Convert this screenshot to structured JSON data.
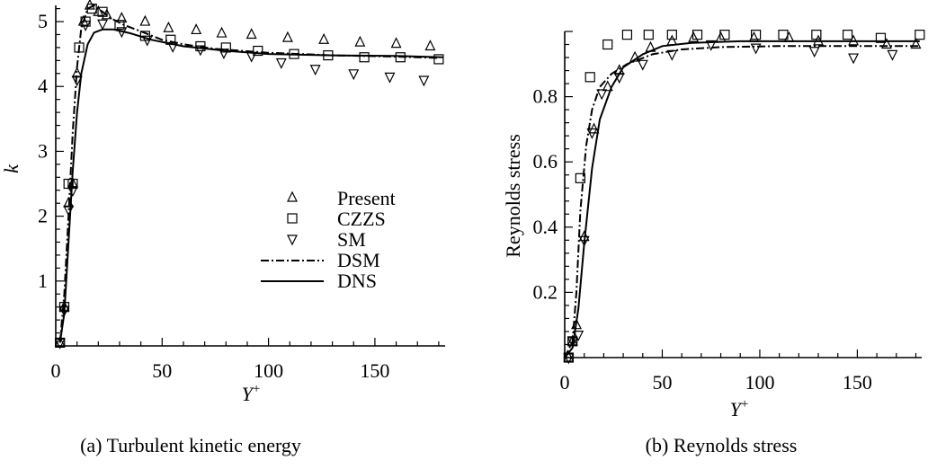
{
  "chart_data": [
    {
      "type": "line",
      "caption": "(a) Turbulent kinetic energy",
      "title": "",
      "xlabel": "Y",
      "xlabel_sup": "+",
      "ylabel": "k",
      "xlim": [
        0,
        183
      ],
      "ylim": [
        0,
        5.25
      ],
      "xticks": [
        0,
        50,
        100,
        150
      ],
      "yticks": [
        1,
        2,
        3,
        4,
        5
      ],
      "grid": false,
      "legend_position": "center-right",
      "series": [
        {
          "name": "Present",
          "marker": "triangle-up",
          "values": [
            [
              2,
              0.05
            ],
            [
              4,
              0.6
            ],
            [
              6,
              2.2
            ],
            [
              8,
              2.5
            ],
            [
              10,
              4.2
            ],
            [
              13,
              5.0
            ],
            [
              16,
              5.25
            ],
            [
              20,
              5.15
            ],
            [
              24,
              5.1
            ],
            [
              31,
              5.05
            ],
            [
              42,
              5.0
            ],
            [
              53,
              4.9
            ],
            [
              66,
              4.87
            ],
            [
              78,
              4.82
            ],
            [
              92,
              4.8
            ],
            [
              109,
              4.75
            ],
            [
              126,
              4.72
            ],
            [
              143,
              4.68
            ],
            [
              160,
              4.66
            ],
            [
              176,
              4.62
            ]
          ]
        },
        {
          "name": "CZZS",
          "marker": "square",
          "values": [
            [
              2,
              0.05
            ],
            [
              4,
              0.6
            ],
            [
              6,
              2.5
            ],
            [
              8,
              2.5
            ],
            [
              11,
              4.6
            ],
            [
              14,
              5.0
            ],
            [
              17,
              5.2
            ],
            [
              22,
              5.15
            ],
            [
              30,
              4.95
            ],
            [
              42,
              4.78
            ],
            [
              54,
              4.72
            ],
            [
              68,
              4.62
            ],
            [
              80,
              4.6
            ],
            [
              95,
              4.55
            ],
            [
              112,
              4.5
            ],
            [
              128,
              4.48
            ],
            [
              145,
              4.45
            ],
            [
              162,
              4.45
            ],
            [
              180,
              4.42
            ]
          ]
        },
        {
          "name": "SM",
          "marker": "triangle-down",
          "values": [
            [
              2,
              0.05
            ],
            [
              4,
              0.55
            ],
            [
              6,
              2.1
            ],
            [
              8,
              2.4
            ],
            [
              10,
              4.1
            ],
            [
              14,
              4.95
            ],
            [
              22,
              4.97
            ],
            [
              31,
              4.85
            ],
            [
              43,
              4.72
            ],
            [
              55,
              4.62
            ],
            [
              68,
              4.57
            ],
            [
              79,
              4.52
            ],
            [
              92,
              4.47
            ],
            [
              106,
              4.37
            ],
            [
              122,
              4.27
            ],
            [
              140,
              4.2
            ],
            [
              157,
              4.15
            ],
            [
              173,
              4.1
            ]
          ]
        },
        {
          "name": "DSM",
          "line_style": "dash-dot",
          "values": [
            [
              2,
              0.05
            ],
            [
              4,
              0.8
            ],
            [
              6,
              2.0
            ],
            [
              8,
              3.3
            ],
            [
              10,
              4.3
            ],
            [
              12,
              4.9
            ],
            [
              15,
              5.2
            ],
            [
              18,
              5.25
            ],
            [
              22,
              5.15
            ],
            [
              26,
              5.05
            ],
            [
              32,
              4.95
            ],
            [
              40,
              4.85
            ],
            [
              50,
              4.72
            ],
            [
              60,
              4.65
            ],
            [
              75,
              4.58
            ],
            [
              100,
              4.52
            ],
            [
              130,
              4.48
            ],
            [
              160,
              4.46
            ],
            [
              180,
              4.44
            ]
          ]
        },
        {
          "name": "DNS",
          "line_style": "solid",
          "values": [
            [
              2,
              0.05
            ],
            [
              4,
              0.5
            ],
            [
              6,
              1.6
            ],
            [
              8,
              2.7
            ],
            [
              10,
              3.6
            ],
            [
              12,
              4.2
            ],
            [
              15,
              4.65
            ],
            [
              18,
              4.83
            ],
            [
              22,
              4.88
            ],
            [
              27,
              4.88
            ],
            [
              35,
              4.82
            ],
            [
              45,
              4.72
            ],
            [
              60,
              4.62
            ],
            [
              80,
              4.55
            ],
            [
              100,
              4.5
            ],
            [
              130,
              4.48
            ],
            [
              160,
              4.47
            ],
            [
              182,
              4.45
            ]
          ]
        }
      ]
    },
    {
      "type": "line",
      "caption": "(b) Reynolds stress",
      "title": "",
      "xlabel": "Y",
      "xlabel_sup": "+",
      "ylabel": "Reynolds stress",
      "xlim": [
        0,
        183
      ],
      "ylim": [
        0,
        1.0
      ],
      "xticks": [
        0,
        50,
        100,
        150
      ],
      "yticks": [
        0.2,
        0.4,
        0.6,
        0.8
      ],
      "grid": false,
      "legend_position": "none",
      "series": [
        {
          "name": "Present",
          "marker": "triangle-up",
          "values": [
            [
              2,
              0.0
            ],
            [
              4,
              0.05
            ],
            [
              6,
              0.1
            ],
            [
              10,
              0.37
            ],
            [
              15,
              0.7
            ],
            [
              22,
              0.83
            ],
            [
              28,
              0.88
            ],
            [
              36,
              0.92
            ],
            [
              44,
              0.95
            ],
            [
              55,
              0.97
            ],
            [
              66,
              0.98
            ],
            [
              80,
              0.98
            ],
            [
              97,
              0.98
            ],
            [
              115,
              0.98
            ],
            [
              130,
              0.97
            ],
            [
              148,
              0.97
            ],
            [
              165,
              0.96
            ],
            [
              180,
              0.96
            ]
          ]
        },
        {
          "name": "CZZS",
          "marker": "square",
          "values": [
            [
              2,
              0.0
            ],
            [
              4,
              0.05
            ],
            [
              8,
              0.55
            ],
            [
              13,
              0.86
            ],
            [
              22,
              0.96
            ],
            [
              32,
              0.99
            ],
            [
              43,
              0.99
            ],
            [
              55,
              0.99
            ],
            [
              68,
              0.99
            ],
            [
              82,
              0.99
            ],
            [
              98,
              0.99
            ],
            [
              112,
              0.99
            ],
            [
              129,
              0.99
            ],
            [
              145,
              0.99
            ],
            [
              162,
              0.98
            ],
            [
              182,
              0.99
            ]
          ]
        },
        {
          "name": "SM",
          "marker": "triangle-down",
          "values": [
            [
              2,
              0.0
            ],
            [
              4,
              0.05
            ],
            [
              7,
              0.07
            ],
            [
              10,
              0.36
            ],
            [
              14,
              0.69
            ],
            [
              19,
              0.81
            ],
            [
              28,
              0.86
            ],
            [
              40,
              0.9
            ],
            [
              55,
              0.93
            ],
            [
              75,
              0.96
            ],
            [
              98,
              0.95
            ],
            [
              128,
              0.94
            ],
            [
              148,
              0.92
            ],
            [
              168,
              0.93
            ]
          ]
        },
        {
          "name": "DSM",
          "line_style": "dash-dot",
          "values": [
            [
              0,
              0.0
            ],
            [
              4,
              0.05
            ],
            [
              6,
              0.2
            ],
            [
              8,
              0.45
            ],
            [
              11,
              0.65
            ],
            [
              14,
              0.76
            ],
            [
              18,
              0.83
            ],
            [
              24,
              0.87
            ],
            [
              32,
              0.9
            ],
            [
              45,
              0.93
            ],
            [
              60,
              0.945
            ],
            [
              80,
              0.952
            ],
            [
              110,
              0.955
            ],
            [
              150,
              0.955
            ],
            [
              182,
              0.955
            ]
          ]
        },
        {
          "name": "DNS",
          "line_style": "solid",
          "values": [
            [
              0,
              0.0
            ],
            [
              4,
              0.03
            ],
            [
              7,
              0.15
            ],
            [
              10,
              0.35
            ],
            [
              14,
              0.58
            ],
            [
              18,
              0.73
            ],
            [
              24,
              0.83
            ],
            [
              30,
              0.89
            ],
            [
              40,
              0.93
            ],
            [
              50,
              0.955
            ],
            [
              65,
              0.965
            ],
            [
              90,
              0.97
            ],
            [
              120,
              0.97
            ],
            [
              150,
              0.97
            ],
            [
              182,
              0.97
            ]
          ]
        }
      ]
    }
  ]
}
